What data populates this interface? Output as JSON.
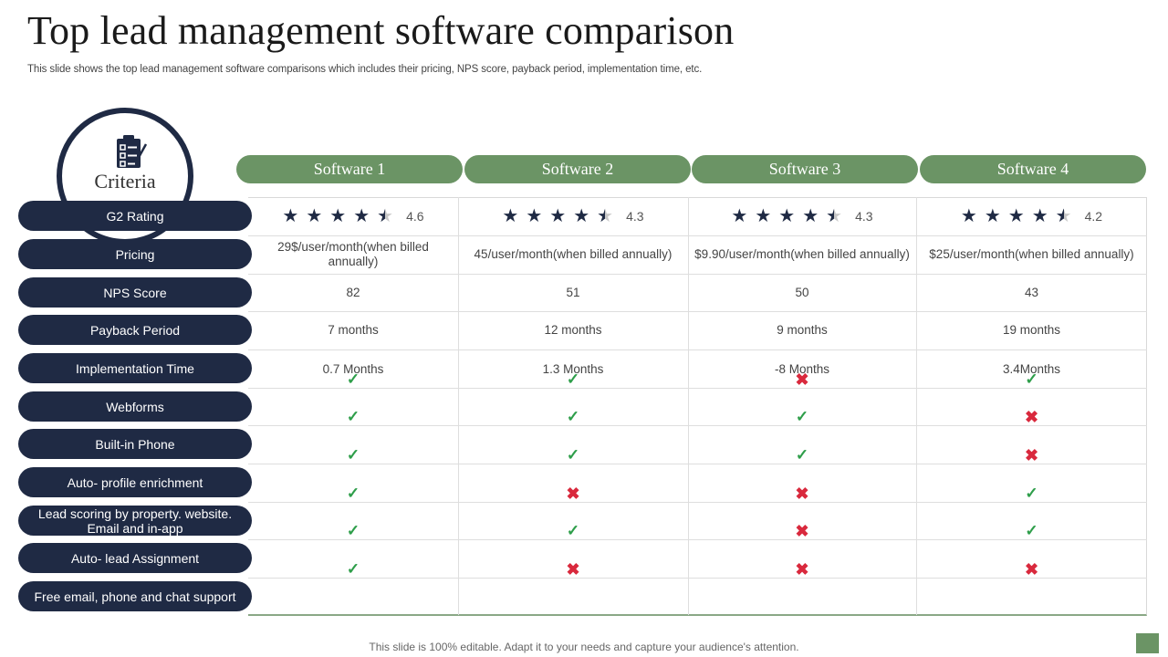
{
  "title": "Top lead management software comparison",
  "subtitle": "This slide shows the top lead management software comparisons which includes their pricing, NPS score, payback period, implementation time, etc.",
  "criteria_label": "Criteria",
  "software": [
    "Software 1",
    "Software 2",
    "Software 3",
    "Software 4"
  ],
  "criteria": [
    "G2 Rating",
    "Pricing",
    "NPS Score",
    "Payback Period",
    "Implementation Time",
    "Webforms",
    "Built-in Phone",
    "Auto- profile enrichment",
    "Lead scoring by property. website. Email and in-app",
    "Auto- lead Assignment",
    "Free email, phone and chat support"
  ],
  "ratings": [
    {
      "value": 4.6,
      "label": "4.6"
    },
    {
      "value": 4.3,
      "label": "4.3"
    },
    {
      "value": 4.3,
      "label": "4.3"
    },
    {
      "value": 4.2,
      "label": "4.2"
    }
  ],
  "pricing": [
    "29$/user/month(when  billed annually)",
    "45/user/month(when  billed annually)",
    "$9.90/user/month(when  billed annually)",
    "$25/user/month(when  billed annually)"
  ],
  "nps": [
    "82",
    "51",
    "50",
    "43"
  ],
  "payback": [
    "7 months",
    "12 months",
    "9 months",
    "19 months"
  ],
  "implementation": [
    "0.7 Months",
    "1.3 Months",
    "-8 Months",
    "3.4Months"
  ],
  "feature_marks": [
    [
      "check",
      "check",
      "cross",
      "check"
    ],
    [
      "check",
      "check",
      "check",
      "cross"
    ],
    [
      "check",
      "check",
      "check",
      "cross"
    ],
    [
      "check",
      "cross",
      "cross",
      "check"
    ],
    [
      "check",
      "check",
      "cross",
      "check"
    ],
    [
      "check",
      "cross",
      "cross",
      "cross"
    ]
  ],
  "icons": {
    "badge": "clipboard-checklist-icon",
    "check": "checkmark-icon",
    "cross": "cross-icon",
    "star": "star-icon"
  },
  "colors": {
    "navy": "#1f2a44",
    "green": "#6b9465",
    "check": "#2e9e4a",
    "cross": "#d9293d"
  },
  "footer": "This slide is 100% editable. Adapt it to your needs and capture your audience's attention."
}
